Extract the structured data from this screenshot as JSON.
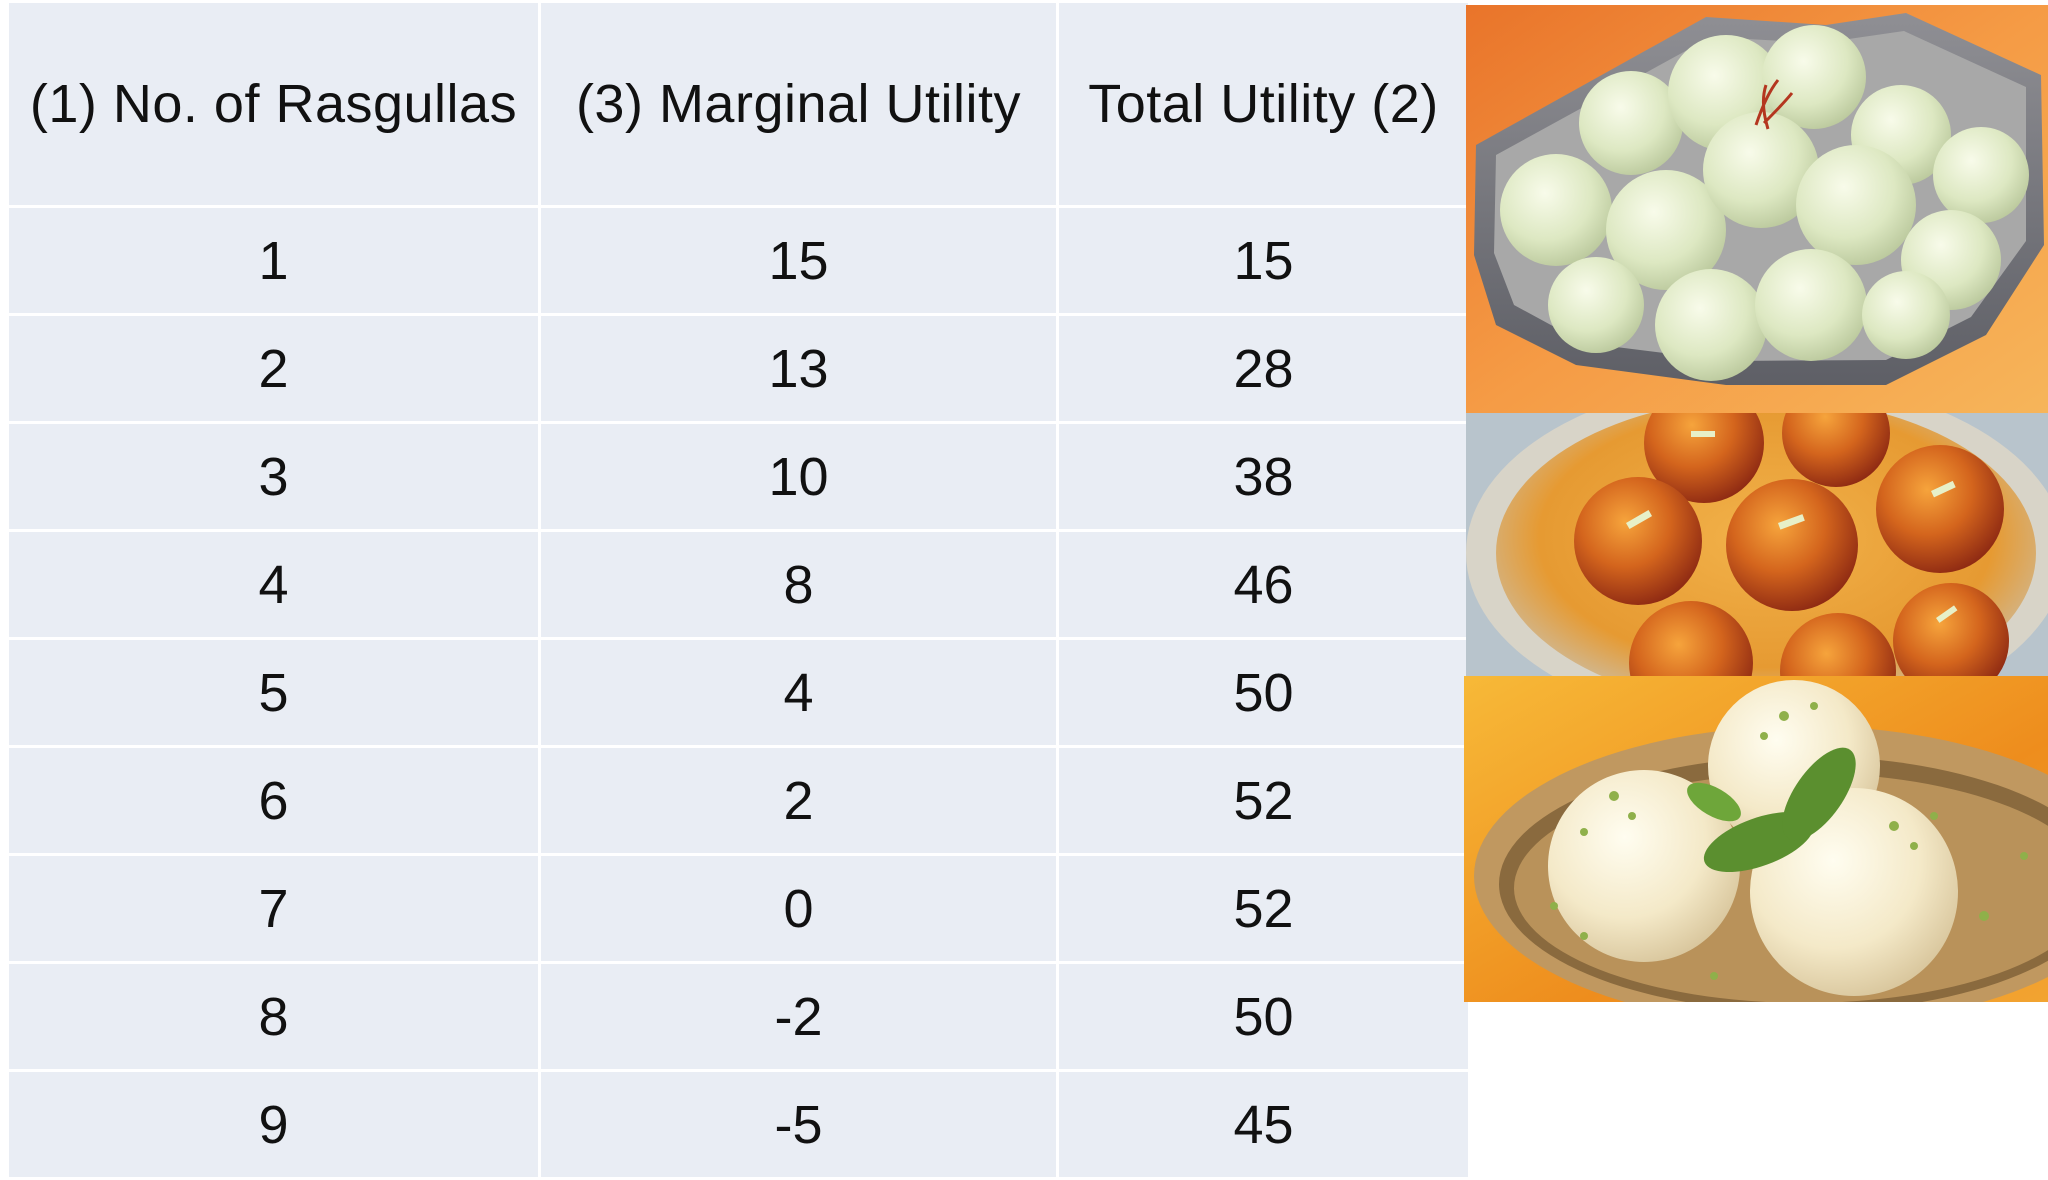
{
  "table": {
    "headers": [
      "(1) No. of Rasgullas",
      "(3) Marginal Utility",
      "Total Utility (2)"
    ],
    "rows": [
      [
        "1",
        "15",
        "15"
      ],
      [
        "2",
        "13",
        "28"
      ],
      [
        "3",
        "10",
        "38"
      ],
      [
        "4",
        "8",
        "46"
      ],
      [
        "5",
        "4",
        "50"
      ],
      [
        "6",
        "2",
        "52"
      ],
      [
        "7",
        "0",
        "52"
      ],
      [
        "8",
        "-2",
        "50"
      ],
      [
        "9",
        "-5",
        "45"
      ]
    ]
  },
  "photos": [
    {
      "icon": "rasgulla-bowl-photo"
    },
    {
      "icon": "gulab-jamun-photo"
    },
    {
      "icon": "rasmalai-photo"
    }
  ],
  "colors": {
    "cell_background": "#e9edf4",
    "cell_border": "#ffffff",
    "text": "#111111"
  }
}
